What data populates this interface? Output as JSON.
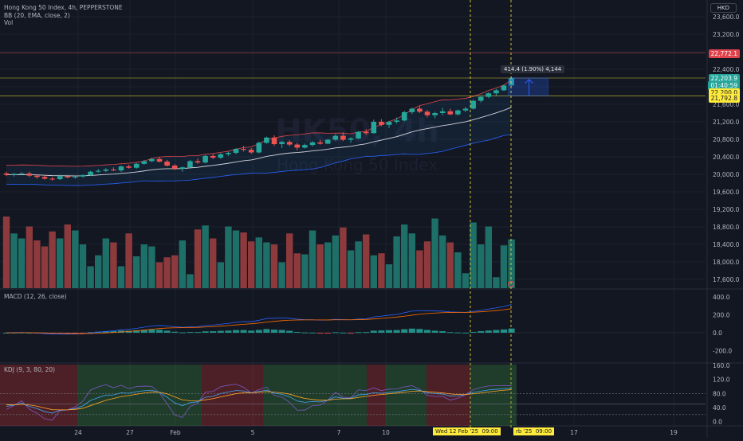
{
  "header": {
    "symbol_line": "Hong Kong 50 Index, 4h, PEPPERSTONE",
    "indicator_bb": "BB (20, EMA, close, 2)",
    "indicator_vol": "Vol",
    "currency": "HKD"
  },
  "watermark": {
    "symbol": "HK50, 4h",
    "name": "Hong Kong 50 Index"
  },
  "measure": {
    "text": "414.4 (1.90%) 4,144"
  },
  "colors": {
    "bg": "#131722",
    "up": "#26a69a",
    "down": "#ef5350",
    "bb_basis": "#d1d4dc",
    "bb_upper": "#e0434b",
    "bb_lower": "#2962ff",
    "macd": "#2962ff",
    "signal": "#ff6d00",
    "yellow": "#ffeb3b",
    "kdj_green": "#1b5e20",
    "kdj_red": "#b71c1c"
  },
  "price_axis": {
    "ticks": [
      "23,600.0",
      "23,200.0",
      "22,800.0",
      "22,400.0",
      "22,000.0",
      "21,600.0",
      "21,200.0",
      "20,800.0",
      "20,400.0",
      "20,000.0",
      "19,600.0",
      "19,200.0",
      "18,800.0",
      "18,400.0",
      "18,000.0",
      "17,600.0"
    ],
    "badges": [
      {
        "label": "22,772.1",
        "kind": "red"
      },
      {
        "label": "22,203.9",
        "kind": "teal"
      },
      {
        "label": "01:40:59",
        "kind": "teal"
      },
      {
        "label": "22,200.0",
        "kind": "yellow"
      },
      {
        "label": "21,792.8",
        "kind": "yellow"
      }
    ]
  },
  "macd_panel": {
    "title": "MACD (12, 26, close)",
    "ticks": [
      "400.0",
      "200.0",
      "0.0",
      "-200.0"
    ]
  },
  "kdj_panel": {
    "title": "KDJ (9, 3, 80, 20)",
    "ticks": [
      "160.0",
      "120.0",
      "80.0",
      "40.0",
      "0.0"
    ]
  },
  "time_axis": {
    "labels": [
      "24",
      "27",
      "Feb",
      "5",
      "7",
      "10",
      "17",
      "19"
    ],
    "crosshair_date": "Wed 12 Feb '25",
    "crosshair_time": "09:00",
    "second_date": "rb '25",
    "second_time": "09:00"
  },
  "chart_data": {
    "type": "candlestick",
    "ohlc": [
      [
        20020,
        20060,
        19960,
        19990
      ],
      [
        19990,
        20030,
        19950,
        20010
      ],
      [
        20010,
        20050,
        19980,
        20020
      ],
      [
        20020,
        20060,
        19940,
        19970
      ],
      [
        19970,
        20000,
        19900,
        19940
      ],
      [
        19940,
        19980,
        19880,
        19900
      ],
      [
        19900,
        19940,
        19860,
        19890
      ],
      [
        19890,
        19990,
        19870,
        19960
      ],
      [
        19960,
        19990,
        19910,
        19930
      ],
      [
        19930,
        19970,
        19900,
        19950
      ],
      [
        19950,
        20000,
        19920,
        19980
      ],
      [
        19980,
        20080,
        19960,
        20060
      ],
      [
        20060,
        20120,
        20040,
        20080
      ],
      [
        20080,
        20140,
        20050,
        20110
      ],
      [
        20110,
        20160,
        20070,
        20090
      ],
      [
        20090,
        20200,
        20060,
        20180
      ],
      [
        20180,
        20220,
        20130,
        20150
      ],
      [
        20150,
        20260,
        20130,
        20240
      ],
      [
        20240,
        20330,
        20220,
        20300
      ],
      [
        20300,
        20380,
        20280,
        20350
      ],
      [
        20350,
        20400,
        20270,
        20290
      ],
      [
        20290,
        20330,
        20180,
        20200
      ],
      [
        20200,
        20230,
        20100,
        20130
      ],
      [
        20130,
        20180,
        20060,
        20160
      ],
      [
        20160,
        20330,
        20140,
        20300
      ],
      [
        20300,
        20360,
        20240,
        20270
      ],
      [
        20270,
        20440,
        20250,
        20420
      ],
      [
        20420,
        20470,
        20350,
        20380
      ],
      [
        20380,
        20480,
        20350,
        20460
      ],
      [
        20460,
        20520,
        20420,
        20490
      ],
      [
        20490,
        20600,
        20460,
        20580
      ],
      [
        20580,
        20650,
        20520,
        20560
      ],
      [
        20560,
        20600,
        20470,
        20500
      ],
      [
        20500,
        20750,
        20480,
        20720
      ],
      [
        20720,
        20860,
        20700,
        20840
      ],
      [
        20840,
        20890,
        20650,
        20690
      ],
      [
        20690,
        20760,
        20600,
        20740
      ],
      [
        20740,
        20780,
        20640,
        20680
      ],
      [
        20680,
        20720,
        20550,
        20610
      ],
      [
        20610,
        20700,
        20590,
        20670
      ],
      [
        20670,
        20760,
        20640,
        20730
      ],
      [
        20730,
        20790,
        20680,
        20700
      ],
      [
        20700,
        20810,
        20690,
        20790
      ],
      [
        20790,
        20920,
        20770,
        20880
      ],
      [
        20880,
        20960,
        20760,
        20790
      ],
      [
        20790,
        20850,
        20720,
        20820
      ],
      [
        20820,
        20990,
        20800,
        20970
      ],
      [
        20970,
        21030,
        20900,
        20940
      ],
      [
        20940,
        21250,
        20930,
        21200
      ],
      [
        21200,
        21260,
        21100,
        21130
      ],
      [
        21130,
        21220,
        21060,
        21200
      ],
      [
        21200,
        21300,
        21160,
        21230
      ],
      [
        21230,
        21450,
        21210,
        21420
      ],
      [
        21420,
        21520,
        21380,
        21500
      ],
      [
        21500,
        21560,
        21400,
        21430
      ],
      [
        21430,
        21470,
        21300,
        21350
      ],
      [
        21350,
        21430,
        21280,
        21400
      ],
      [
        21400,
        21520,
        21350,
        21440
      ],
      [
        21440,
        21500,
        21350,
        21370
      ],
      [
        21370,
        21480,
        21340,
        21460
      ],
      [
        21460,
        21540,
        21420,
        21500
      ],
      [
        21500,
        21700,
        21480,
        21680
      ],
      [
        21680,
        21800,
        21640,
        21770
      ],
      [
        21770,
        21870,
        21740,
        21850
      ],
      [
        21850,
        21950,
        21800,
        21920
      ],
      [
        21920,
        22050,
        21900,
        22030
      ],
      [
        22030,
        22230,
        22010,
        22200
      ]
    ],
    "volume": [
      72,
      55,
      50,
      62,
      48,
      42,
      57,
      50,
      64,
      58,
      44,
      22,
      33,
      50,
      46,
      22,
      55,
      32,
      44,
      42,
      26,
      31,
      33,
      48,
      14,
      59,
      63,
      50,
      26,
      62,
      58,
      56,
      47,
      51,
      46,
      44,
      26,
      55,
      35,
      34,
      58,
      44,
      46,
      53,
      61,
      38,
      47,
      54,
      33,
      35,
      24,
      52,
      64,
      55,
      38,
      47,
      70,
      53,
      46,
      36,
      15,
      66,
      44,
      62,
      11,
      43,
      49
    ],
    "price_ylim": [
      17400,
      23800
    ]
  }
}
